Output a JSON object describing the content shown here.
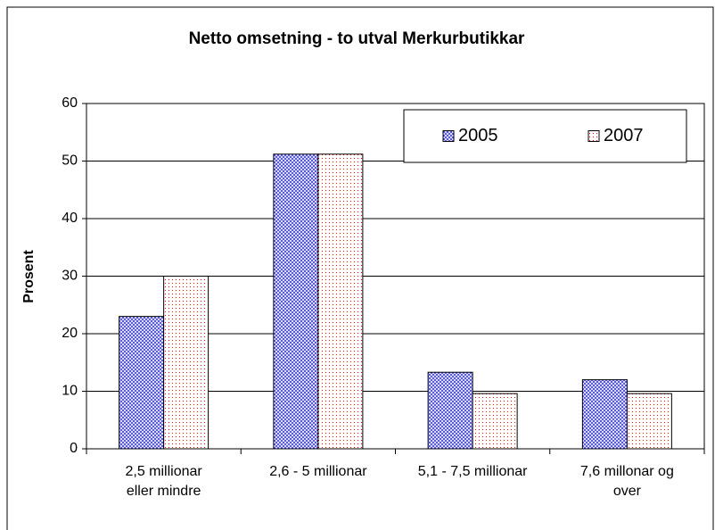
{
  "chart_data": {
    "type": "bar",
    "title": "Netto omsetning - to utval Merkurbutikkar",
    "ylabel": "Prosent",
    "categories": [
      "2,5 millionar\neller mindre",
      "2,6 - 5 millionar",
      "5,1 - 7,5 millionar",
      "7,6 millonar og\nover"
    ],
    "series": [
      {
        "name": "2005",
        "color": "#3333ff",
        "values": [
          23,
          51.2,
          13.3,
          12
        ]
      },
      {
        "name": "2007",
        "color": "#ff0000",
        "values": [
          30,
          51.2,
          9.6,
          9.6
        ]
      }
    ],
    "ylim": [
      0,
      60
    ],
    "yticks": [
      0,
      10,
      20,
      30,
      40,
      50,
      60
    ],
    "grid": true,
    "legend": "top-right"
  }
}
